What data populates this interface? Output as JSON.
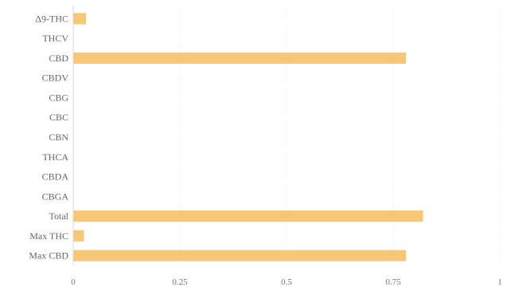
{
  "chart_data": {
    "type": "bar",
    "orientation": "horizontal",
    "title": "",
    "xlabel": "",
    "ylabel": "",
    "categories": [
      "Δ9-THC",
      "THCV",
      "CBD",
      "CBDV",
      "CBG",
      "CBC",
      "CBN",
      "THCA",
      "CBDA",
      "CBGA",
      "Total",
      "Max THC",
      "Max CBD"
    ],
    "values": [
      0.03,
      0,
      0.78,
      0,
      0,
      0,
      0,
      0,
      0,
      0,
      0.82,
      0.025,
      0.78
    ],
    "xlim": [
      0,
      1
    ],
    "xticks": [
      0,
      0.25,
      0.5,
      0.75,
      1
    ],
    "xtick_labels": [
      "0",
      "0.25",
      "0.5",
      "0.75",
      "1"
    ],
    "grid": true,
    "legend": "none",
    "bar_color": "#f5c26b"
  }
}
